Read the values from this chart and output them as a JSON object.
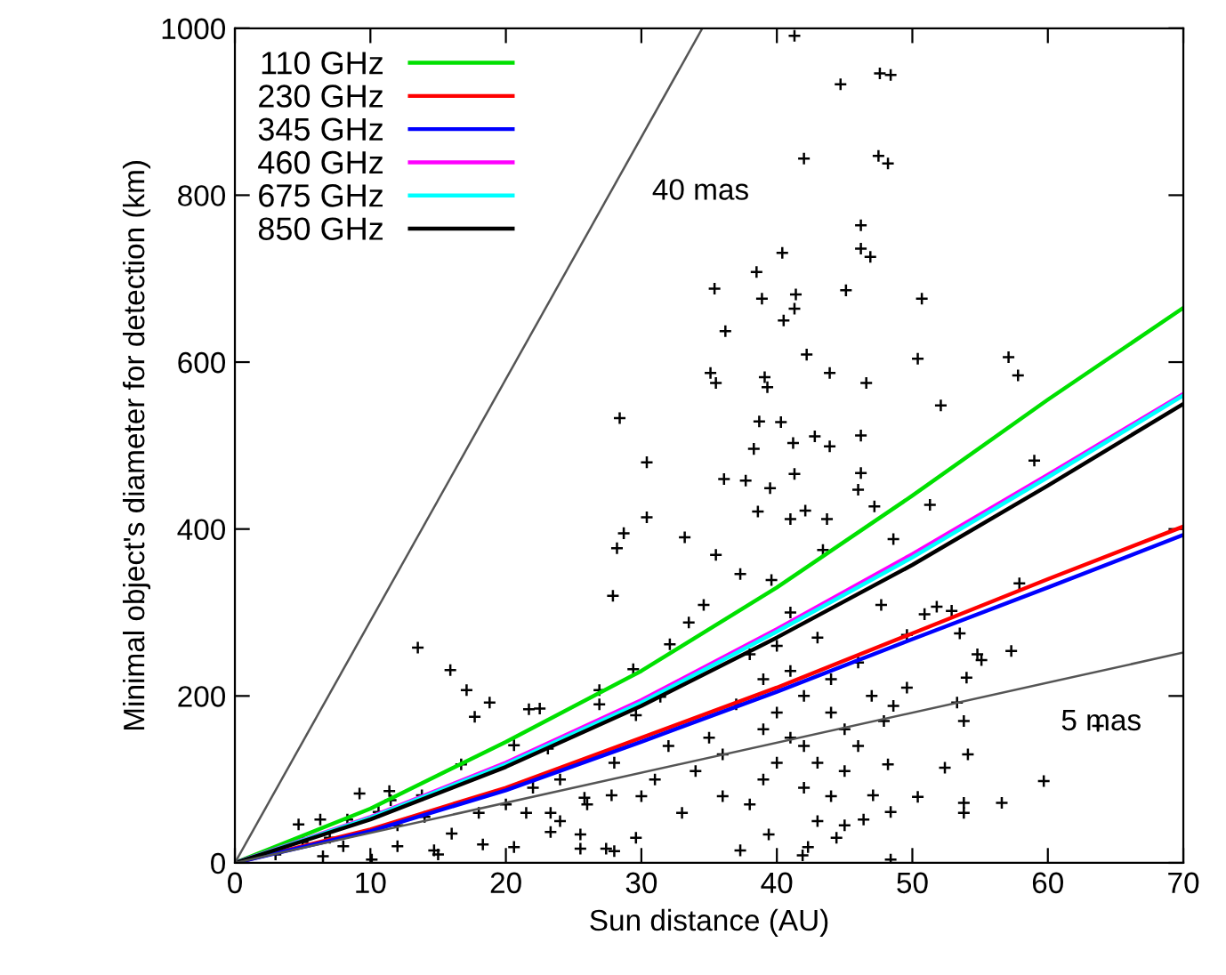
{
  "chart_data": {
    "type": "line",
    "xlabel": "Sun distance (AU)",
    "ylabel": "Minimal object's diameter for detection (km)",
    "xlim": [
      0,
      70
    ],
    "ylim": [
      0,
      1000
    ],
    "xticks": [
      0,
      10,
      20,
      30,
      40,
      50,
      60,
      70
    ],
    "yticks": [
      0,
      200,
      400,
      600,
      800,
      1000
    ],
    "grid": false,
    "legend": "top left",
    "marker": "none",
    "line_style": "solid",
    "series": [
      {
        "name": "110 GHz",
        "color": "#00e000",
        "x": [
          0,
          10,
          20,
          30,
          40,
          50,
          60,
          70
        ],
        "values": [
          0,
          65,
          145,
          230,
          330,
          440,
          555,
          665
        ]
      },
      {
        "name": "230 GHz",
        "color": "#ff0000",
        "x": [
          0,
          10,
          20,
          30,
          40,
          50,
          60,
          70
        ],
        "values": [
          0,
          40,
          90,
          150,
          210,
          275,
          340,
          403
        ]
      },
      {
        "name": "345 GHz",
        "color": "#0000ff",
        "x": [
          0,
          10,
          20,
          30,
          40,
          50,
          60,
          70
        ],
        "values": [
          0,
          38,
          87,
          145,
          205,
          268,
          330,
          393
        ]
      },
      {
        "name": "460 GHz",
        "color": "#ff00ff",
        "x": [
          0,
          10,
          20,
          30,
          40,
          50,
          60,
          70
        ],
        "values": [
          0,
          55,
          120,
          195,
          280,
          370,
          465,
          562
        ]
      },
      {
        "name": "675 GHz",
        "color": "#00ffff",
        "x": [
          0,
          10,
          20,
          30,
          40,
          50,
          60,
          70
        ],
        "values": [
          0,
          54,
          118,
          192,
          277,
          366,
          462,
          560
        ]
      },
      {
        "name": "850 GHz",
        "color": "#000000",
        "x": [
          0,
          10,
          20,
          30,
          40,
          50,
          60,
          70
        ],
        "values": [
          0,
          52,
          115,
          188,
          270,
          357,
          452,
          550
        ]
      },
      {
        "type": "line",
        "name": "40 mas",
        "color": "#555555",
        "x": [
          0,
          34.5
        ],
        "values": [
          0,
          1000
        ]
      },
      {
        "type": "line",
        "name": "5 mas",
        "color": "#555555",
        "x": [
          0,
          70
        ],
        "values": [
          0,
          252
        ]
      },
      {
        "type": "scatter",
        "marker": "cross",
        "color": "#000000",
        "x": [
          41.3,
          44.7,
          47.6,
          48.4,
          42.0,
          47.5,
          48.2,
          46.2,
          46.2,
          46.9,
          40.4,
          38.5,
          35.4,
          38.9,
          41.4,
          45.1,
          50.7,
          41.3,
          40.5,
          36.2,
          42.2,
          50.4,
          57.1,
          57.8,
          35.1,
          35.5,
          39.1,
          39.3,
          43.9,
          46.6,
          52.1,
          28.4,
          38.7,
          40.3,
          46.2,
          42.8,
          30.4,
          59.0,
          38.3,
          41.2,
          43.9,
          36.1,
          37.7,
          39.5,
          41.3,
          46.2,
          46.0,
          30.4,
          28.7,
          28.2,
          33.2,
          38.6,
          42.1,
          41.0,
          43.7,
          47.2,
          51.3,
          48.6,
          43.4,
          27.9,
          57.9,
          13.5,
          15.9,
          17.1,
          18.8,
          17.7,
          21.7,
          22.5,
          63.7,
          59.7,
          56.6,
          53.8,
          53.8,
          52.4,
          54.1,
          53.8,
          53.3,
          57.3,
          54.8,
          55.1,
          53.5,
          52.9,
          51.8,
          54.0,
          48.4,
          50.4,
          48.4,
          47.1,
          4.7,
          6.3,
          8.3,
          9.2,
          11.4,
          11.5,
          10.6,
          16.7,
          13.8,
          6.5,
          10.1,
          14.7,
          18.3,
          20.6,
          23.3,
          25.5,
          25.5,
          27.4,
          28.0,
          29.6,
          25.8,
          27.8,
          21.5,
          23.3,
          20.6,
          23.1,
          26.9,
          26.9,
          31.4,
          29.6,
          29.4,
          32.1,
          33.5,
          34.6,
          35.5,
          37.3,
          39.6,
          37.3,
          39.4,
          41.9,
          42.3,
          44.4,
          45.0,
          46.4,
          48.2,
          49.6,
          47.9,
          48.6,
          49.6,
          47.7,
          50.9,
          40,
          42,
          41,
          43,
          39,
          44,
          38,
          45,
          36,
          42,
          40,
          46,
          37,
          44,
          41,
          43,
          39,
          45,
          38,
          42,
          47,
          35,
          40,
          36,
          44,
          41,
          43,
          39,
          46,
          34,
          33,
          31,
          32,
          30,
          28,
          26,
          24,
          3,
          5,
          7,
          8,
          12,
          14,
          16,
          18,
          20,
          22,
          24,
          12,
          15
        ],
        "values": [
          991,
          933,
          946,
          944,
          844,
          847,
          838,
          764,
          736,
          726,
          731,
          708,
          688,
          676,
          681,
          686,
          676,
          664,
          650,
          637,
          609,
          604,
          606,
          584,
          587,
          575,
          582,
          570,
          587,
          575,
          548,
          533,
          529,
          528,
          512,
          511,
          480,
          482,
          496,
          503,
          499,
          460,
          458,
          449,
          466,
          467,
          447,
          414,
          395,
          377,
          390,
          421,
          422,
          412,
          412,
          427,
          429,
          388,
          375,
          320,
          335,
          258,
          231,
          207,
          192,
          175,
          184,
          185,
          164,
          98,
          72,
          72,
          60,
          114,
          130,
          170,
          192,
          254,
          250,
          243,
          275,
          302,
          307,
          222,
          4,
          79,
          61,
          81,
          46,
          52,
          52,
          83,
          86,
          75,
          61,
          118,
          81,
          8,
          4,
          15,
          22,
          19,
          37,
          34,
          17,
          17,
          14,
          30,
          78,
          81,
          60,
          60,
          141,
          137,
          207,
          190,
          199,
          177,
          232,
          262,
          288,
          309,
          369,
          346,
          339,
          15,
          34,
          9,
          19,
          30,
          45,
          52,
          118,
          210,
          170,
          188,
          273,
          309,
          298,
          180,
          200,
          150,
          120,
          100,
          220,
          250,
          160,
          130,
          90,
          260,
          240,
          190,
          80,
          230,
          270,
          160,
          110,
          70,
          140,
          200,
          150,
          120,
          80,
          180,
          300,
          50,
          220,
          140,
          110,
          60,
          100,
          140,
          80,
          120,
          70,
          50,
          10,
          25,
          30,
          20,
          45,
          55,
          35,
          60,
          70,
          90,
          100,
          20,
          10
        ]
      }
    ]
  }
}
